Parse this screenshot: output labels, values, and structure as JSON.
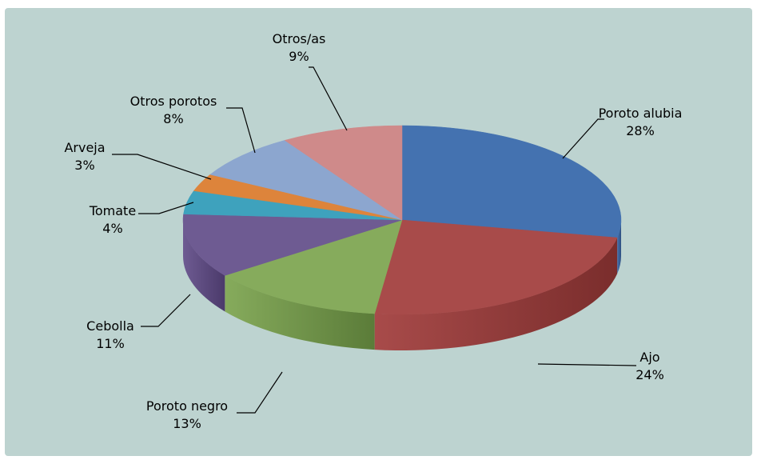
{
  "chart_data": {
    "type": "pie",
    "style": "3d",
    "title": "",
    "slices": [
      {
        "label": "Poroto alubia",
        "value": 28,
        "percent_text": "28%",
        "color": "#4472b0",
        "side_color": "#2e4f80"
      },
      {
        "label": "Ajo",
        "value": 24,
        "percent_text": "24%",
        "color": "#a84b4a",
        "side_color": "#7a2d2c"
      },
      {
        "label": "Poroto negro",
        "value": 13,
        "percent_text": "13%",
        "color": "#86ab5c",
        "side_color": "#5b7c39"
      },
      {
        "label": "Cebolla",
        "value": 11,
        "percent_text": "11%",
        "color": "#6e5b92",
        "side_color": "#4b3a6b"
      },
      {
        "label": "Tomate",
        "value": 4,
        "percent_text": "4%",
        "color": "#3ea2bd",
        "side_color": "#2a7487"
      },
      {
        "label": "Arveja",
        "value": 3,
        "percent_text": "3%",
        "color": "#dd843b",
        "side_color": "#a35c22"
      },
      {
        "label": "Otros porotos",
        "value": 8,
        "percent_text": "8%",
        "color": "#8ca6cf",
        "side_color": "#60789f"
      },
      {
        "label": "Otros/as",
        "value": 9,
        "percent_text": "9%",
        "color": "#cf8a8a",
        "side_color": "#9e5f5f"
      }
    ],
    "colors": {
      "background": "#bdd3d0"
    }
  }
}
